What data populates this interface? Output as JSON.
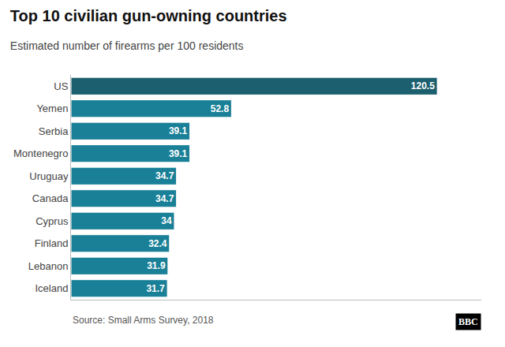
{
  "chart_data": {
    "type": "bar",
    "orientation": "horizontal",
    "title": "Top 10 civilian gun-owning countries",
    "subtitle": "Estimated number of firearms per 100 residents",
    "categories": [
      "US",
      "Yemen",
      "Serbia",
      "Montenegro",
      "Uruguay",
      "Canada",
      "Cyprus",
      "Finland",
      "Lebanon",
      "Iceland"
    ],
    "values": [
      120.5,
      52.8,
      39.1,
      39.1,
      34.7,
      34.7,
      34,
      32.4,
      31.9,
      31.7
    ],
    "colors": [
      "#1c5f6e",
      "#1a8097",
      "#1a8097",
      "#1a8097",
      "#1a8097",
      "#1a8097",
      "#1a8097",
      "#1a8097",
      "#1a8097",
      "#1a8097"
    ],
    "xlim": [
      0,
      135
    ],
    "data_labels": true,
    "tick_labels": "y",
    "grid": false,
    "annotations": [
      "Source: Small Arms Survey, 2018",
      "BBC"
    ]
  }
}
